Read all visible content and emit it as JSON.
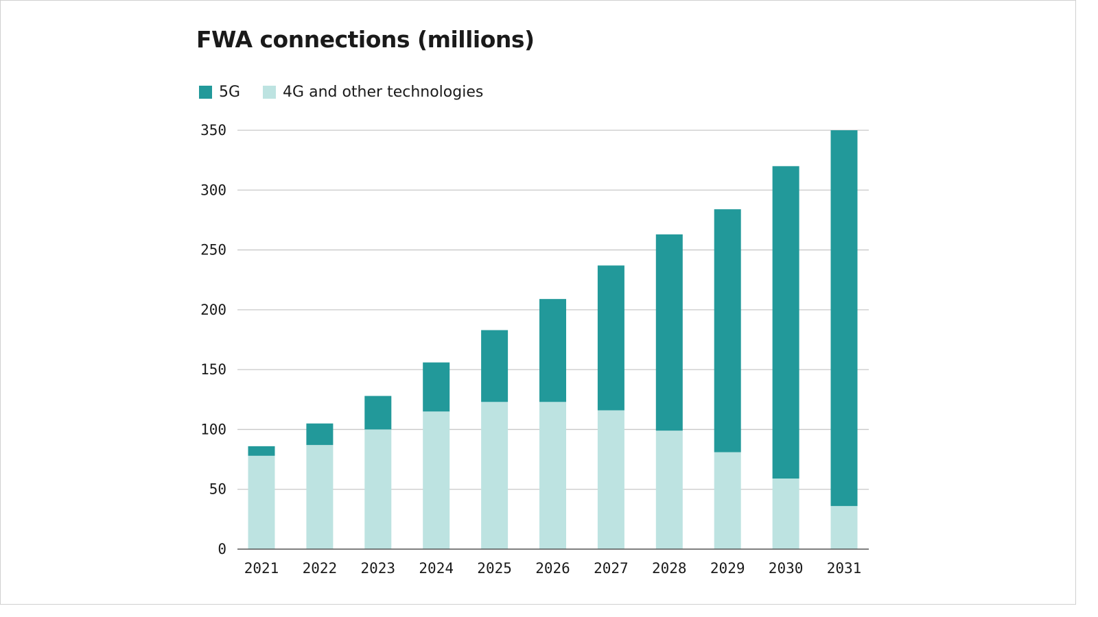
{
  "chart_data": {
    "type": "bar",
    "stacked": true,
    "title": "FWA connections (millions)",
    "xlabel": "",
    "ylabel": "",
    "ylim": [
      0,
      350
    ],
    "yticks": [
      0,
      50,
      100,
      150,
      200,
      250,
      300,
      350
    ],
    "grid": true,
    "legend_position": "top-left",
    "categories": [
      "2021",
      "2022",
      "2023",
      "2024",
      "2025",
      "2026",
      "2027",
      "2028",
      "2029",
      "2030",
      "2031"
    ],
    "series": [
      {
        "name": "4G and other technologies",
        "color": "#bde3e1",
        "values": [
          78,
          87,
          100,
          115,
          123,
          123,
          116,
          99,
          81,
          59,
          36
        ]
      },
      {
        "name": "5G",
        "color": "#22999a",
        "values": [
          8,
          18,
          28,
          41,
          60,
          86,
          121,
          164,
          203,
          261,
          314
        ]
      }
    ]
  },
  "legend": [
    {
      "label": "5G",
      "color": "#22999a"
    },
    {
      "label": "4G and other technologies",
      "color": "#bde3e1"
    }
  ]
}
